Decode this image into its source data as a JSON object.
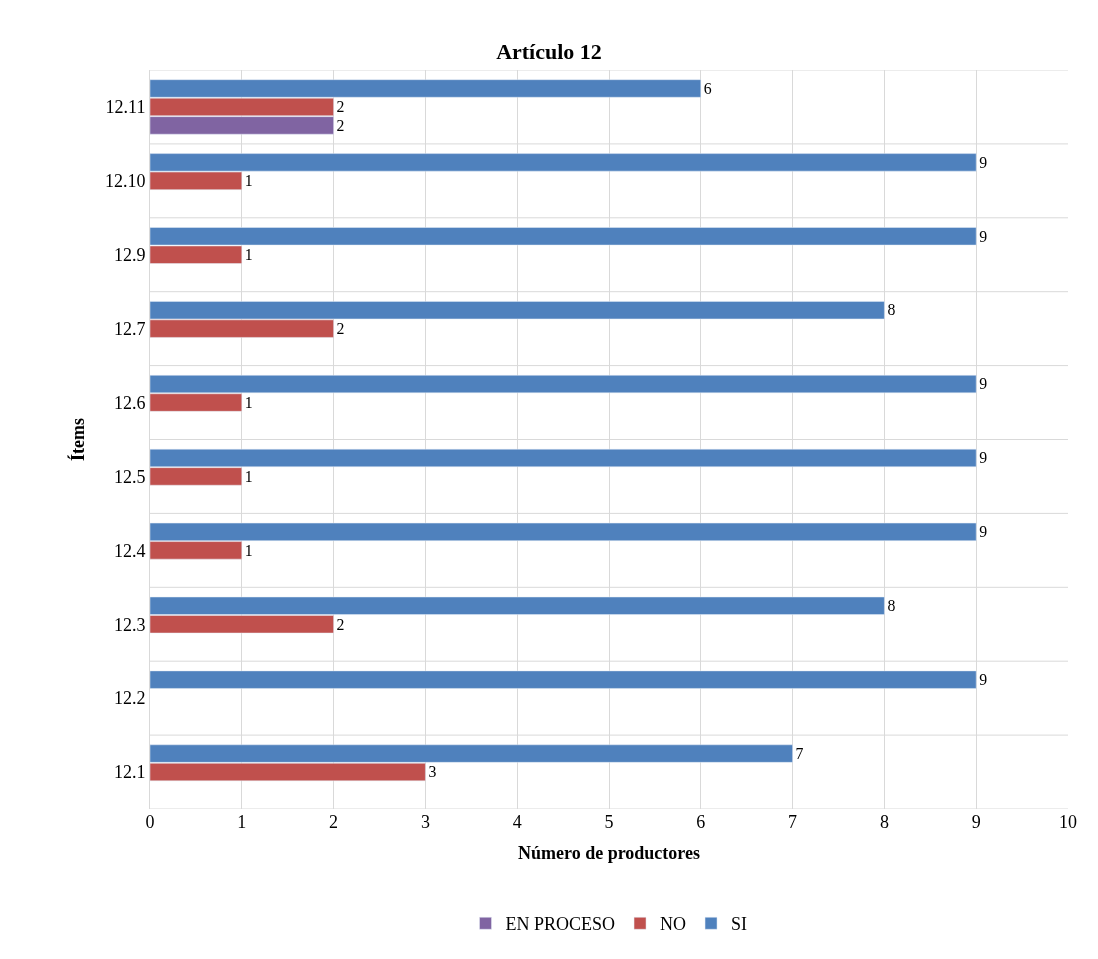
{
  "chart_data": {
    "type": "bar",
    "orientation": "horizontal",
    "title": "Artículo 12",
    "xlabel": "Número de productores",
    "ylabel": "Ítems",
    "categories": [
      "12.11",
      "12.10",
      "12.9",
      "12.7",
      "12.6",
      "12.5",
      "12.4",
      "12.3",
      "12.2",
      "12.1"
    ],
    "series": [
      {
        "name": "SI",
        "color": "#4f81bd",
        "values": [
          6,
          9,
          9,
          8,
          9,
          9,
          9,
          8,
          9,
          7
        ]
      },
      {
        "name": "NO",
        "color": "#c0504d",
        "values": [
          2,
          1,
          1,
          2,
          1,
          1,
          1,
          2,
          null,
          3
        ]
      },
      {
        "name": "EN PROCESO",
        "color": "#8064a2",
        "values": [
          2,
          null,
          null,
          null,
          null,
          null,
          null,
          null,
          null,
          null
        ]
      }
    ],
    "xlim": [
      0,
      10
    ],
    "xticks": [
      0,
      1,
      2,
      3,
      4,
      5,
      6,
      7,
      8,
      9,
      10
    ],
    "grid": "x",
    "legend": "bottom",
    "data_labels": true
  }
}
